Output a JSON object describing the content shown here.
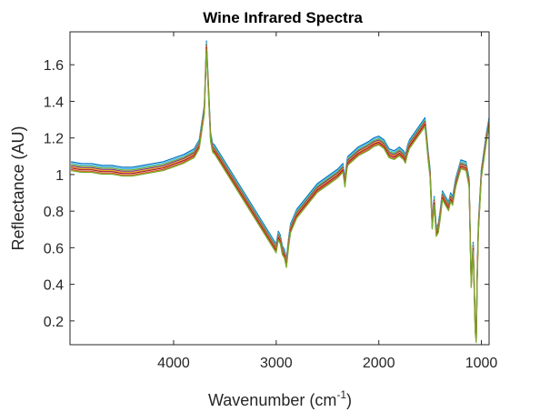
{
  "chart_data": {
    "type": "line",
    "title": "Wine Infrared Spectra",
    "xlabel": "Wavenumber (cm",
    "xlabel_superscript": "-1",
    "xlabel_suffix": ")",
    "ylabel": "Reflectance (AU)",
    "x_reversed": true,
    "xlim": [
      5010,
      925
    ],
    "ylim": [
      0.07,
      1.78
    ],
    "x_ticks": [
      4000,
      3000,
      2000,
      1000
    ],
    "y_ticks": [
      0.2,
      0.4,
      0.6,
      0.8,
      1,
      1.2,
      1.4,
      1.6
    ],
    "y_tick_labels": [
      "0.2",
      "0.4",
      "0.6",
      "0.8",
      "1",
      "1.2",
      "1.4",
      "1.6"
    ],
    "grid": false,
    "box": true,
    "wavenumbers": [
      5000,
      4900,
      4800,
      4700,
      4600,
      4500,
      4400,
      4300,
      4200,
      4100,
      4000,
      3900,
      3800,
      3750,
      3700,
      3680,
      3660,
      3640,
      3620,
      3600,
      3000,
      2980,
      2960,
      2940,
      2920,
      2900,
      2880,
      2860,
      2800,
      2700,
      2600,
      2500,
      2400,
      2350,
      2330,
      2310,
      2300,
      2200,
      2100,
      2050,
      2000,
      1950,
      1900,
      1850,
      1800,
      1760,
      1740,
      1720,
      1700,
      1600,
      1550,
      1520,
      1500,
      1480,
      1460,
      1440,
      1420,
      1400,
      1380,
      1350,
      1320,
      1300,
      1280,
      1250,
      1200,
      1150,
      1120,
      1100,
      1080,
      1060,
      1050,
      1040,
      1030,
      1000,
      950,
      925
    ],
    "reference_reflectance": [
      1.04,
      1.03,
      1.03,
      1.02,
      1.02,
      1.01,
      1.01,
      1.02,
      1.03,
      1.04,
      1.06,
      1.08,
      1.11,
      1.16,
      1.35,
      1.7,
      1.45,
      1.2,
      1.14,
      1.13,
      0.59,
      0.66,
      0.64,
      0.58,
      0.56,
      0.51,
      0.62,
      0.7,
      0.78,
      0.85,
      0.92,
      0.96,
      1.0,
      1.03,
      0.95,
      1.05,
      1.07,
      1.12,
      1.15,
      1.17,
      1.18,
      1.16,
      1.11,
      1.1,
      1.12,
      1.1,
      1.08,
      1.13,
      1.16,
      1.24,
      1.28,
      1.1,
      1.0,
      0.72,
      0.85,
      0.68,
      0.7,
      0.78,
      0.88,
      0.85,
      0.82,
      0.87,
      0.85,
      0.95,
      1.05,
      1.04,
      0.95,
      0.4,
      0.6,
      0.15,
      0.1,
      0.45,
      0.7,
      1.0,
      1.2,
      1.28
    ],
    "series": [
      {
        "color": "#0072BD",
        "offset": 0.03
      },
      {
        "color": "#4DBEEE",
        "offset": 0.022
      },
      {
        "color": "#77AC30",
        "offset": 0.015
      },
      {
        "color": "#7E2F8E",
        "offset": 0.008
      },
      {
        "color": "#EDB120",
        "offset": 0.002
      },
      {
        "color": "#A2142F",
        "offset": -0.004
      },
      {
        "color": "#D95319",
        "offset": -0.012
      },
      {
        "color": "#77AC30",
        "offset": -0.018
      }
    ]
  }
}
